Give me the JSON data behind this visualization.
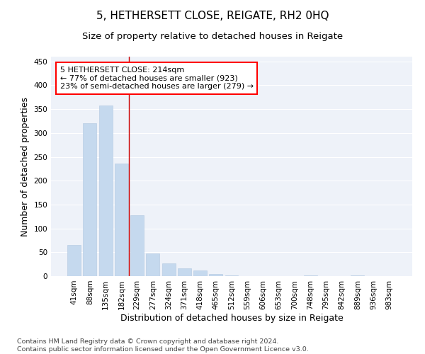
{
  "title": "5, HETHERSETT CLOSE, REIGATE, RH2 0HQ",
  "subtitle": "Size of property relative to detached houses in Reigate",
  "xlabel": "Distribution of detached houses by size in Reigate",
  "ylabel": "Number of detached properties",
  "bar_values": [
    65,
    320,
    358,
    236,
    128,
    47,
    27,
    16,
    12,
    5,
    2,
    0,
    0,
    0,
    0,
    2,
    0,
    0,
    2,
    0,
    0
  ],
  "bar_labels": [
    "41sqm",
    "88sqm",
    "135sqm",
    "182sqm",
    "229sqm",
    "277sqm",
    "324sqm",
    "371sqm",
    "418sqm",
    "465sqm",
    "512sqm",
    "559sqm",
    "606sqm",
    "653sqm",
    "700sqm",
    "748sqm",
    "795sqm",
    "842sqm",
    "889sqm",
    "936sqm",
    "983sqm"
  ],
  "bar_color": "#c5d9ee",
  "bar_edgecolor": "#b0c8e0",
  "vline_color": "#cc0000",
  "vline_x_idx": 3.5,
  "annotation_line1": "5 HETHERSETT CLOSE: 214sqm",
  "annotation_line2": "← 77% of detached houses are smaller (923)",
  "annotation_line3": "23% of semi-detached houses are larger (279) →",
  "ylim": [
    0,
    460
  ],
  "yticks": [
    0,
    50,
    100,
    150,
    200,
    250,
    300,
    350,
    400,
    450
  ],
  "footer_line1": "Contains HM Land Registry data © Crown copyright and database right 2024.",
  "footer_line2": "Contains public sector information licensed under the Open Government Licence v3.0.",
  "bg_color": "#eef2f9",
  "grid_color": "#ffffff",
  "title_fontsize": 11,
  "subtitle_fontsize": 9.5,
  "axis_label_fontsize": 9,
  "tick_fontsize": 7.5,
  "annotation_fontsize": 8,
  "footer_fontsize": 6.8
}
